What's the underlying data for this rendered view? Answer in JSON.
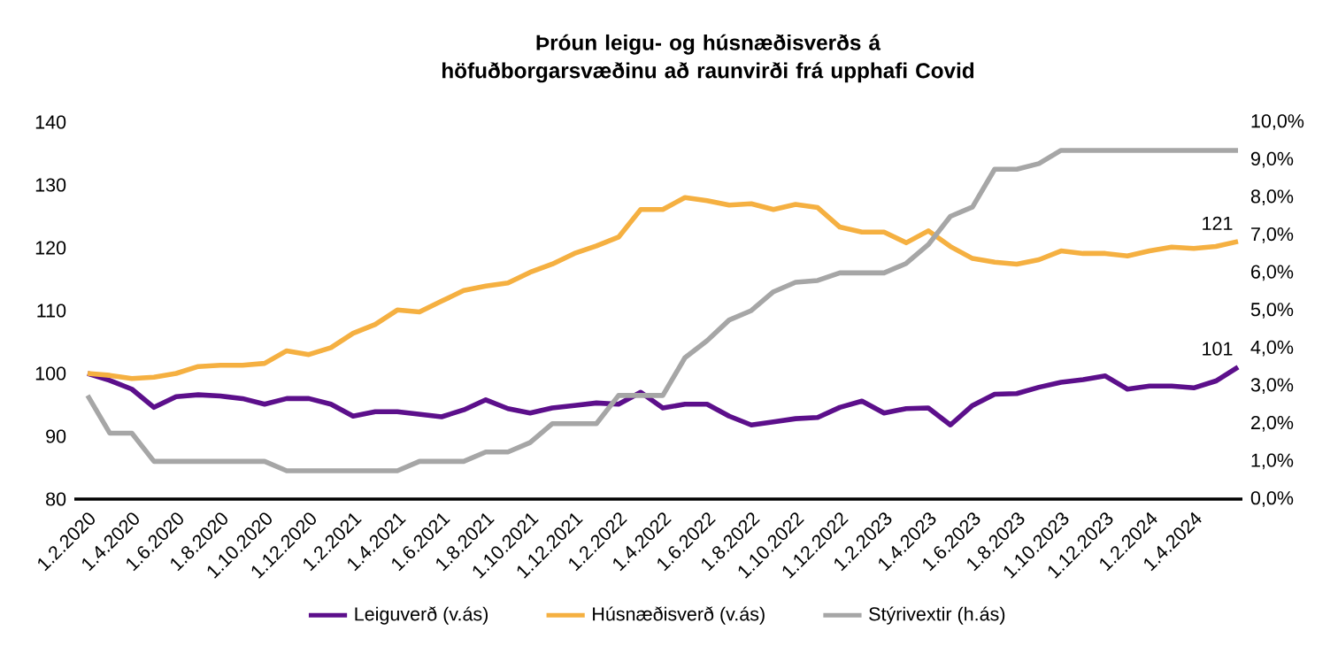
{
  "chart_data": {
    "type": "line",
    "title": "Þróun leigu- og húsnæðisverðs á höfuðborgarsvæðinu að raunvirði frá upphafi Covid",
    "categories": [
      "1.2.2020",
      null,
      "1.4.2020",
      null,
      "1.6.2020",
      null,
      "1.8.2020",
      null,
      "1.10.2020",
      null,
      "1.12.2020",
      null,
      "1.2.2021",
      null,
      "1.4.2021",
      null,
      "1.6.2021",
      null,
      "1.8.2021",
      null,
      "1.10.2021",
      null,
      "1.12.2021",
      null,
      "1.2.2022",
      null,
      "1.4.2022",
      null,
      "1.6.2022",
      null,
      "1.8.2022",
      null,
      "1.10.2022",
      null,
      "1.12.2022",
      null,
      "1.2.2023",
      null,
      "1.4.2023",
      null,
      "1.6.2023",
      null,
      "1.8.2023",
      null,
      "1.10.2023",
      null,
      "1.12.2023",
      null,
      "1.2.2024",
      null,
      "1.4.2024",
      null,
      null
    ],
    "series": [
      {
        "name": "Leiguverð (v.ás)",
        "color": "#5c0f8b",
        "values": [
          100,
          98.9,
          97.5,
          94.6,
          96.3,
          96.6,
          96.4,
          96.0,
          95.1,
          96.0,
          96.0,
          95.1,
          93.2,
          93.9,
          93.9,
          93.5,
          93.1,
          94.2,
          95.8,
          94.4,
          93.7,
          94.5,
          94.9,
          95.3,
          95.1,
          97.0,
          94.5,
          95.1,
          95.1,
          93.2,
          91.8,
          92.3,
          92.8,
          93.0,
          94.6,
          95.6,
          93.7,
          94.4,
          94.5,
          91.8,
          94.9,
          96.7,
          96.8,
          97.8,
          98.6,
          99.0,
          99.6,
          97.5,
          98.0,
          98.0,
          97.7,
          98.8,
          101
        ],
        "value_labels": [
          null,
          null,
          null,
          null,
          null,
          null,
          null,
          null,
          null,
          null,
          null,
          null,
          null,
          null,
          null,
          null,
          null,
          null,
          null,
          null,
          null,
          null,
          null,
          null,
          null,
          null,
          null,
          null,
          null,
          null,
          null,
          null,
          null,
          null,
          null,
          null,
          null,
          null,
          null,
          null,
          null,
          null,
          null,
          null,
          null,
          null,
          null,
          null,
          null,
          null,
          null,
          null,
          "101"
        ]
      },
      {
        "name": "Húsnæðisverð (v.ás)",
        "color": "#f5b041",
        "values": [
          100,
          99.7,
          99.2,
          99.4,
          100,
          101.1,
          101.3,
          101.3,
          101.6,
          103.6,
          103.0,
          104.1,
          106.4,
          107.8,
          110.1,
          109.8,
          111.5,
          113.2,
          113.9,
          114.4,
          116.1,
          117.4,
          119.1,
          120.3,
          121.7,
          126.1,
          126.1,
          128.0,
          127.5,
          126.8,
          127.0,
          126.1,
          126.9,
          126.4,
          123.3,
          122.5,
          122.5,
          120.8,
          122.7,
          120.2,
          118.3,
          117.7,
          117.4,
          118.1,
          119.5,
          119.1,
          119.1,
          118.7,
          119.5,
          120.1,
          119.9,
          120.2,
          121
        ],
        "value_labels": [
          null,
          null,
          null,
          null,
          null,
          null,
          null,
          null,
          null,
          null,
          null,
          null,
          null,
          null,
          null,
          null,
          null,
          null,
          null,
          null,
          null,
          null,
          null,
          null,
          null,
          null,
          null,
          null,
          null,
          null,
          null,
          null,
          null,
          null,
          null,
          null,
          null,
          null,
          null,
          null,
          null,
          null,
          null,
          null,
          null,
          null,
          null,
          null,
          null,
          null,
          null,
          null,
          "121"
        ]
      },
      {
        "name": "Stýrivextir (h.ás)",
        "color": "#a6a6a6",
        "axis": "y2",
        "values": [
          2.75,
          1.75,
          1.75,
          1.0,
          1.0,
          1.0,
          1.0,
          1.0,
          1.0,
          0.75,
          0.75,
          0.75,
          0.75,
          0.75,
          0.75,
          1.0,
          1.0,
          1.0,
          1.25,
          1.25,
          1.5,
          2.0,
          2.0,
          2.0,
          2.75,
          2.75,
          2.75,
          3.75,
          4.2,
          4.75,
          5.0,
          5.5,
          5.75,
          5.8,
          6.0,
          6.0,
          6.0,
          6.25,
          6.75,
          7.5,
          7.75,
          8.75,
          8.75,
          8.9,
          9.25,
          9.25,
          9.25,
          9.25,
          9.25,
          9.25,
          9.25,
          9.25,
          9.25
        ]
      }
    ],
    "ylim": [
      80,
      140
    ],
    "yticks": [
      80,
      90,
      100,
      110,
      120,
      130,
      140
    ],
    "y2lim": [
      0,
      10
    ],
    "y2ticks": [
      {
        "value": 0,
        "label": "0,0%"
      },
      {
        "value": 1,
        "label": "1,0%"
      },
      {
        "value": 2,
        "label": "2,0%"
      },
      {
        "value": 3,
        "label": "3,0%"
      },
      {
        "value": 4,
        "label": "4,0%"
      },
      {
        "value": 5,
        "label": "5,0%"
      },
      {
        "value": 6,
        "label": "6,0%"
      },
      {
        "value": 7,
        "label": "7,0%"
      },
      {
        "value": 8,
        "label": "8,0%"
      },
      {
        "value": 9,
        "label": "9,0%"
      },
      {
        "value": 10,
        "label": "10,0%"
      }
    ],
    "legend": "bottom"
  }
}
